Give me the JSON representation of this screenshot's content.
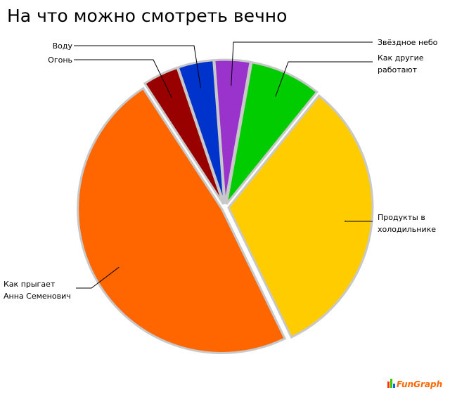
{
  "chart_data": {
    "type": "pie",
    "title": "На что можно смотреть вечно",
    "categories": [
      "Звёздное небо",
      "Как другие работают",
      "Продукты в холодильнике",
      "Как прыгает Анна Семенович",
      "Огонь",
      "Воду"
    ],
    "values": [
      4,
      8,
      32,
      48,
      4,
      4
    ],
    "colors": [
      "#9933cc",
      "#00cc00",
      "#ffcc00",
      "#ff6600",
      "#990000",
      "#0033cc"
    ],
    "logo": "FunGraph"
  }
}
